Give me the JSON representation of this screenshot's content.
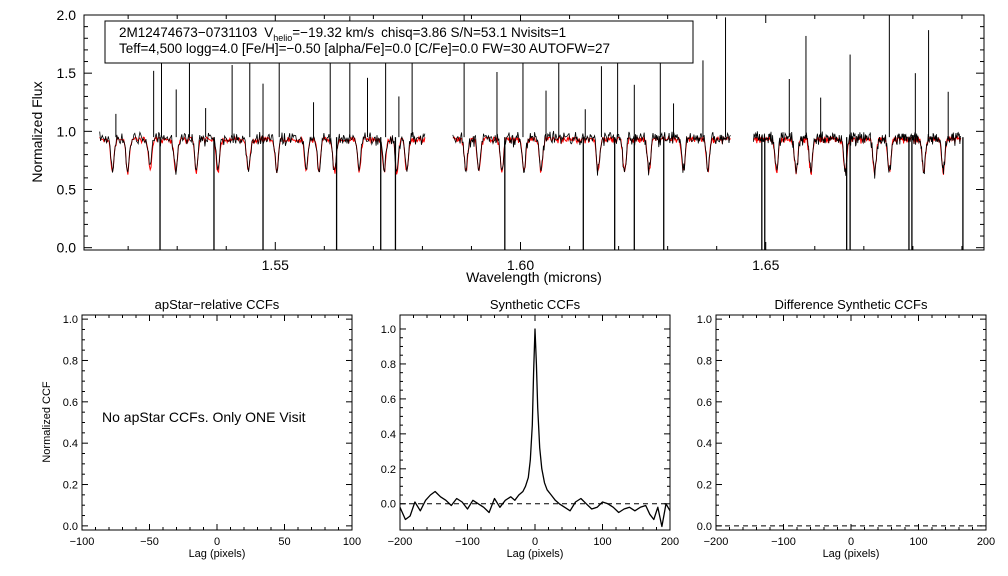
{
  "colors": {
    "observed": "#000000",
    "model": "#ff0000",
    "axes": "#000000",
    "background": "#ffffff"
  },
  "chart_data": [
    {
      "id": "spectrum",
      "type": "line",
      "title": "",
      "info_box": {
        "star_id": "2M12474673−0731103",
        "v_symbol": "V",
        "v_subscript": "helio",
        "v_value": "=−19.32 km/s",
        "stats": "chisq=3.86  S/N=53.1  Nvisits=1",
        "line2": "Teff=4,500 logg=4.0 [Fe/H]=−0.50 [alpha/Fe]=0.0 [C/Fe]=0.0 FW=30 AUTOFW=27"
      },
      "xlabel": "Wavelength (microns)",
      "ylabel": "Normalized Flux",
      "xlim": [
        1.511,
        1.6945
      ],
      "ylim": [
        -0.02,
        2.0
      ],
      "xticks": [
        1.55,
        1.6,
        1.65
      ],
      "xtick_labels": [
        "1.55",
        "1.60",
        "1.65"
      ],
      "yticks": [
        0.0,
        0.5,
        1.0,
        1.5,
        2.0
      ],
      "ytick_labels": [
        "0.0",
        "0.5",
        "1.0",
        "1.5",
        "2.0"
      ],
      "grid": false,
      "chip_ranges": [
        [
          1.5142,
          1.5805
        ],
        [
          1.5862,
          1.6428
        ],
        [
          1.6475,
          1.6898
        ]
      ],
      "series": [
        {
          "role": "observed",
          "color": "#000000"
        },
        {
          "role": "model",
          "color": "#ff0000"
        }
      ],
      "continuum": 0.95,
      "up_spikes": [
        1.5175,
        1.5252,
        1.5268,
        1.5298,
        1.5325,
        1.5358,
        1.5412,
        1.5448,
        1.5475,
        1.5508,
        1.5578,
        1.5612,
        1.5652,
        1.5688,
        1.5725,
        1.5752,
        1.5779,
        1.5885,
        1.5952,
        1.6005,
        1.6052,
        1.6078,
        1.6132,
        1.6165,
        1.6198,
        1.6232,
        1.6285,
        1.6312,
        1.6372,
        1.6418,
        1.6548,
        1.6582,
        1.6612,
        1.6672,
        1.6752,
        1.6805,
        1.6832,
        1.6872
      ],
      "down_spikes": [
        1.5265,
        1.5375,
        1.5475,
        1.5625,
        1.5715,
        1.5745,
        1.5968,
        1.6128,
        1.6192,
        1.6232,
        1.6292,
        1.6492,
        1.6498,
        1.6665,
        1.6672,
        1.6792,
        1.6798,
        1.6902
      ],
      "absorption_lines": [
        1.5168,
        1.5199,
        1.5245,
        1.5297,
        1.5339,
        1.5383,
        1.5445,
        1.5503,
        1.5563,
        1.5589,
        1.5621,
        1.5671,
        1.5722,
        1.5748,
        1.5768,
        1.5889,
        1.5915,
        1.5962,
        1.6007,
        1.6042,
        1.6158,
        1.6212,
        1.6262,
        1.6332,
        1.6382,
        1.6522,
        1.6562,
        1.6592,
        1.6662,
        1.6722,
        1.6752,
        1.6822,
        1.6862
      ]
    },
    {
      "id": "apstar-ccf",
      "type": "line",
      "title": "apStar−relative CCFs",
      "xlabel": "Lag (pixels)",
      "ylabel": "Normalized CCF",
      "xlim": [
        -100,
        100
      ],
      "ylim": [
        -0.02,
        1.02
      ],
      "xticks": [
        -100,
        -50,
        0,
        50,
        100
      ],
      "xtick_labels": [
        "−100",
        "−50",
        "0",
        "50",
        "100"
      ],
      "yticks": [
        0.0,
        0.2,
        0.4,
        0.6,
        0.8,
        1.0
      ],
      "ytick_labels": [
        "0.0",
        "0.2",
        "0.4",
        "0.6",
        "0.8",
        "1.0"
      ],
      "grid": false,
      "annotation": "No apStar CCFs.  Only ONE Visit",
      "series": []
    },
    {
      "id": "synthetic-ccf",
      "type": "line",
      "title": "Synthetic CCFs",
      "xlabel": "Lag (pixels)",
      "ylabel": "",
      "xlim": [
        -200,
        200
      ],
      "ylim": [
        -0.15,
        1.08
      ],
      "xticks": [
        -200,
        -100,
        0,
        100,
        200
      ],
      "xtick_labels": [
        "−200",
        "−100",
        "0",
        "100",
        "200"
      ],
      "yticks": [
        0.0,
        0.2,
        0.4,
        0.6,
        0.8,
        1.0
      ],
      "ytick_labels": [
        "0.0",
        "0.2",
        "0.4",
        "0.6",
        "0.8",
        "1.0"
      ],
      "grid": false,
      "reference_line": 0.0,
      "series": [
        {
          "color": "#000000",
          "x": [
            -200,
            -192,
            -185,
            -178,
            -170,
            -162,
            -155,
            -148,
            -140,
            -132,
            -124,
            -116,
            -108,
            -100,
            -92,
            -84,
            -76,
            -68,
            -60,
            -52,
            -44,
            -36,
            -30,
            -24,
            -18,
            -14,
            -10,
            -7,
            -4,
            -2,
            0,
            2,
            4,
            7,
            10,
            14,
            18,
            24,
            30,
            36,
            44,
            52,
            60,
            68,
            76,
            84,
            92,
            100,
            108,
            116,
            124,
            132,
            140,
            148,
            156,
            164,
            170,
            176,
            182,
            188,
            194,
            200
          ],
          "y": [
            -0.02,
            -0.09,
            -0.07,
            0.01,
            -0.04,
            0.02,
            0.05,
            0.07,
            0.04,
            0.02,
            -0.01,
            0.03,
            0.01,
            -0.03,
            0.02,
            0.0,
            -0.02,
            -0.05,
            0.03,
            -0.02,
            0.02,
            0.04,
            0.02,
            0.05,
            0.07,
            0.1,
            0.15,
            0.25,
            0.45,
            0.75,
            1.0,
            0.8,
            0.55,
            0.32,
            0.2,
            0.12,
            0.08,
            0.05,
            0.02,
            0.0,
            -0.02,
            -0.04,
            0.01,
            0.03,
            0.0,
            -0.03,
            -0.02,
            0.01,
            0.0,
            -0.02,
            -0.05,
            -0.03,
            -0.02,
            -0.04,
            -0.02,
            -0.01,
            -0.06,
            -0.09,
            -0.02,
            -0.13,
            0.0,
            -0.04
          ]
        }
      ]
    },
    {
      "id": "difference-ccf",
      "type": "line",
      "title": "Difference Synthetic CCFs",
      "xlabel": "Lag (pixels)",
      "ylabel": "",
      "xlim": [
        -200,
        200
      ],
      "ylim": [
        -0.02,
        1.02
      ],
      "xticks": [
        -200,
        -100,
        0,
        100,
        200
      ],
      "xtick_labels": [
        "−200",
        "−100",
        "0",
        "100",
        "200"
      ],
      "yticks": [
        0.0,
        0.2,
        0.4,
        0.6,
        0.8,
        1.0
      ],
      "ytick_labels": [
        "0.0",
        "0.2",
        "0.4",
        "0.6",
        "0.8",
        "1.0"
      ],
      "grid": false,
      "reference_line": 0.0,
      "series": []
    }
  ]
}
